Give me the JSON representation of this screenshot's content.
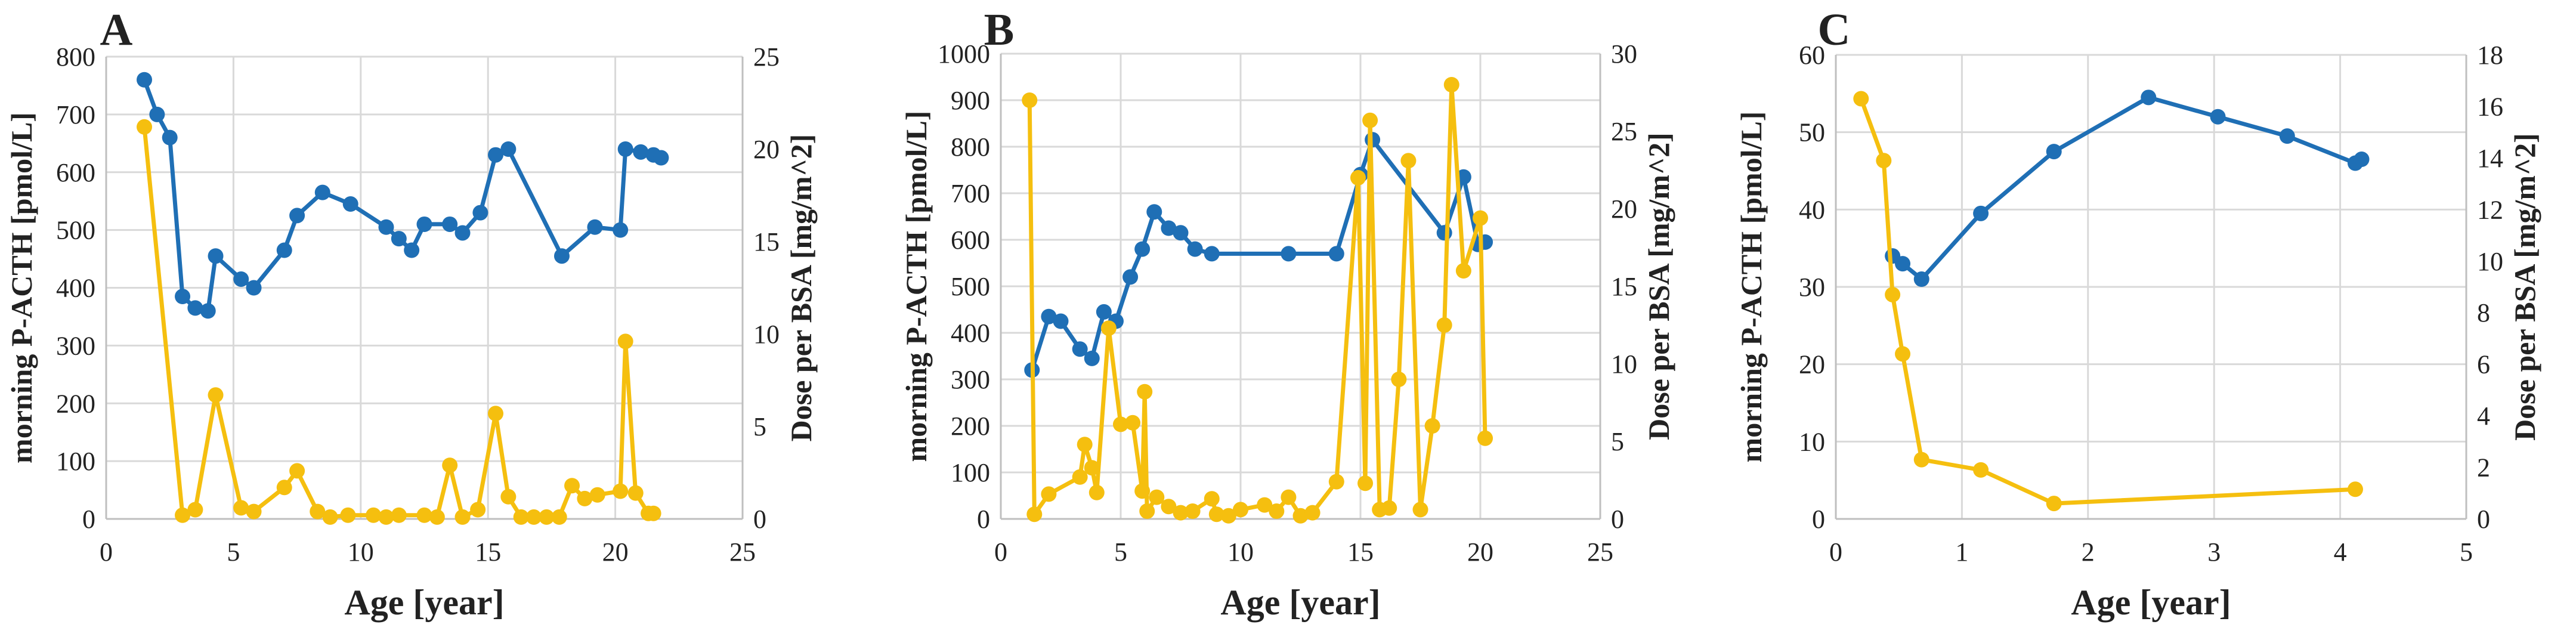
{
  "chart_data": [
    {
      "type": "line",
      "panel": "A",
      "xlabel": "Age [year]",
      "ylabel": "morning P-ACTH [pmol/L]",
      "y2label": "Dose per BSA [mg/m^2]",
      "xlim": [
        0,
        25
      ],
      "xticks": [
        0,
        5,
        10,
        15,
        20,
        25
      ],
      "ylim": [
        0,
        800
      ],
      "yticks": [
        0,
        100,
        200,
        300,
        400,
        500,
        600,
        700,
        800
      ],
      "y2lim": [
        0,
        25
      ],
      "y2ticks": [
        0,
        5,
        10,
        15,
        20,
        25
      ],
      "series": [
        {
          "name": "P-ACTH",
          "axis": "left",
          "color": "#1f6fb5",
          "x": [
            1.5,
            2.0,
            2.5,
            3.0,
            3.5,
            4.0,
            4.3,
            5.3,
            5.8,
            7.0,
            7.5,
            8.5,
            9.6,
            11.0,
            11.5,
            12.0,
            12.5,
            13.5,
            14.0,
            14.7,
            15.3,
            15.8,
            17.9,
            19.2,
            20.2,
            20.4,
            21.0,
            21.5,
            21.8
          ],
          "values": [
            760,
            700,
            660,
            385,
            365,
            360,
            455,
            415,
            400,
            465,
            525,
            565,
            545,
            505,
            485,
            465,
            510,
            510,
            495,
            530,
            630,
            640,
            455,
            505,
            500,
            640,
            635,
            630,
            625
          ]
        },
        {
          "name": "Dose per BSA",
          "axis": "right",
          "color": "#f5bf0f",
          "x": [
            1.5,
            3.0,
            3.5,
            4.3,
            5.3,
            5.8,
            7.0,
            7.5,
            8.3,
            8.8,
            9.5,
            10.5,
            11.0,
            11.5,
            12.5,
            13.0,
            13.5,
            14.0,
            14.6,
            15.3,
            15.8,
            16.3,
            16.8,
            17.3,
            17.8,
            18.3,
            18.8,
            19.3,
            20.2,
            20.4,
            20.8,
            21.3,
            21.5
          ],
          "values": [
            21.2,
            0.2,
            0.5,
            6.7,
            0.6,
            0.4,
            1.7,
            2.6,
            0.4,
            0.1,
            0.2,
            0.2,
            0.1,
            0.2,
            0.2,
            0.1,
            2.9,
            0.1,
            0.5,
            5.7,
            1.2,
            0.1,
            0.1,
            0.1,
            0.1,
            1.8,
            1.1,
            1.3,
            1.5,
            9.6,
            1.4,
            0.3,
            0.3
          ]
        }
      ]
    },
    {
      "type": "line",
      "panel": "B",
      "xlabel": "Age [year]",
      "ylabel": "morning P-ACTH [pmol/L]",
      "y2label": "Dose per BSA [mg/m^2]",
      "xlim": [
        0,
        25
      ],
      "xticks": [
        0,
        5,
        10,
        15,
        20,
        25
      ],
      "ylim": [
        0,
        1000
      ],
      "yticks": [
        0,
        100,
        200,
        300,
        400,
        500,
        600,
        700,
        800,
        900,
        1000
      ],
      "y2lim": [
        0,
        30
      ],
      "y2ticks": [
        0,
        5,
        10,
        15,
        20,
        25,
        30
      ],
      "series": [
        {
          "name": "P-ACTH",
          "axis": "left",
          "color": "#1f6fb5",
          "x": [
            1.3,
            2.0,
            2.5,
            3.3,
            3.8,
            4.3,
            4.8,
            5.4,
            5.9,
            6.4,
            7.0,
            7.5,
            8.1,
            8.8,
            12.0,
            14.0,
            15.0,
            15.5,
            18.5,
            19.3,
            19.9,
            20.2
          ],
          "values": [
            320,
            435,
            425,
            365,
            345,
            445,
            425,
            520,
            580,
            660,
            625,
            615,
            580,
            570,
            570,
            570,
            740,
            815,
            615,
            735,
            590,
            595
          ]
        },
        {
          "name": "Dose per BSA",
          "axis": "right",
          "color": "#f5bf0f",
          "x": [
            1.2,
            1.4,
            2.0,
            3.3,
            3.5,
            3.8,
            4.0,
            4.5,
            5.0,
            5.5,
            5.9,
            6.0,
            6.1,
            6.5,
            7.0,
            7.5,
            8.0,
            8.8,
            9.0,
            9.5,
            10.0,
            11.0,
            11.5,
            12.0,
            12.5,
            13.0,
            14.0,
            14.9,
            15.2,
            15.4,
            15.8,
            16.2,
            16.6,
            17.0,
            17.5,
            18.0,
            18.5,
            18.8,
            19.3,
            20.0,
            20.2
          ],
          "values": [
            27.0,
            0.3,
            1.6,
            2.7,
            4.8,
            3.3,
            1.7,
            12.3,
            6.1,
            6.2,
            1.8,
            8.2,
            0.5,
            1.4,
            0.8,
            0.4,
            0.5,
            1.3,
            0.3,
            0.2,
            0.6,
            0.9,
            0.5,
            1.4,
            0.2,
            0.4,
            2.4,
            22.0,
            2.3,
            25.7,
            0.6,
            0.7,
            9.0,
            23.1,
            0.6,
            6.0,
            12.5,
            28.0,
            16.0,
            19.4,
            5.2
          ]
        }
      ]
    },
    {
      "type": "line",
      "panel": "C",
      "xlabel": "Age [year]",
      "ylabel": "morning P-ACTH [pmol/L]",
      "y2label": "Dose per BSA [mg/m^2]",
      "xlim": [
        0,
        5
      ],
      "xticks": [
        0,
        1,
        2,
        3,
        4,
        5
      ],
      "ylim": [
        0,
        60
      ],
      "yticks": [
        0,
        10,
        20,
        30,
        40,
        50,
        60
      ],
      "y2lim": [
        0,
        18
      ],
      "y2ticks": [
        0,
        2,
        4,
        6,
        8,
        10,
        12,
        14,
        16,
        18
      ],
      "series": [
        {
          "name": "P-ACTH",
          "axis": "left",
          "color": "#1f6fb5",
          "x": [
            0.45,
            0.53,
            0.68,
            1.15,
            1.73,
            2.48,
            3.03,
            3.58,
            4.12,
            4.17
          ],
          "values": [
            34,
            33,
            31,
            39.5,
            47.5,
            54.5,
            52,
            49.5,
            46,
            46.5
          ]
        },
        {
          "name": "Dose per BSA",
          "axis": "right",
          "color": "#f5bf0f",
          "x": [
            0.2,
            0.38,
            0.45,
            0.53,
            0.68,
            1.15,
            1.73,
            4.12
          ],
          "values": [
            16.3,
            13.9,
            8.7,
            6.4,
            2.3,
            1.9,
            0.6,
            1.15
          ]
        }
      ]
    }
  ]
}
